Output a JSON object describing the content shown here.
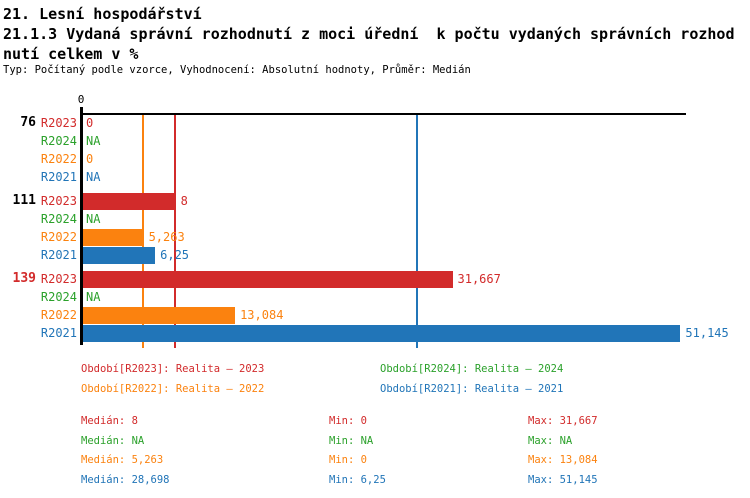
{
  "header": {
    "title_line1": "21. Lesní hospodářství",
    "title_line2": "21.1.3 Vydaná správní rozhodnutí z moci úřední  k počtu vydaných správních rozhod",
    "title_line3": "nutí celkem v %",
    "meta": "Typ: Počítaný podle vzorce, Vyhodnocení: Absolutní hodnoty, Průměr: Medián"
  },
  "colors": {
    "R2023": "#d22b2b",
    "R2024": "#2ba12b",
    "R2022": "#fb820f",
    "R2021": "#2175b8",
    "axis": "#000000"
  },
  "chart_data": {
    "type": "bar",
    "orientation": "horizontal",
    "unit": "%",
    "x_axis": {
      "origin_label": "0",
      "min": 0,
      "max": 51.2,
      "grid": "median-lines-only"
    },
    "series_order": [
      "R2023",
      "R2024",
      "R2022",
      "R2021"
    ],
    "groups": [
      {
        "label": "76",
        "label_color": "#000000",
        "values": {
          "R2023": "0",
          "R2024": "NA",
          "R2022": "0",
          "R2021": "NA"
        }
      },
      {
        "label": "111",
        "label_color": "#000000",
        "values": {
          "R2023": "8",
          "R2024": "NA",
          "R2022": "5,263",
          "R2021": "6,25"
        }
      },
      {
        "label": "139",
        "label_color": "#d22b2b",
        "values": {
          "R2023": "31,667",
          "R2024": "NA",
          "R2022": "13,084",
          "R2021": "51,145"
        }
      }
    ],
    "median_lines": {
      "R2022": 5.263,
      "R2023": 8,
      "R2021": 28.698
    }
  },
  "legend": {
    "items": [
      {
        "series": "R2023",
        "label": "Období[R2023]: Realita – 2023"
      },
      {
        "series": "R2024",
        "label": "Období[R2024]: Realita – 2024"
      },
      {
        "series": "R2022",
        "label": "Období[R2022]: Realita – 2022"
      },
      {
        "series": "R2021",
        "label": "Období[R2021]: Realita – 2021"
      }
    ]
  },
  "stats": {
    "labels": {
      "median": "Medián",
      "min": "Min",
      "max": "Max"
    },
    "rows": [
      {
        "series": "R2023",
        "median": "8",
        "min": "0",
        "max": "31,667"
      },
      {
        "series": "R2024",
        "median": "NA",
        "min": "NA",
        "max": "NA"
      },
      {
        "series": "R2022",
        "median": "5,263",
        "min": "0",
        "max": "13,084"
      },
      {
        "series": "R2021",
        "median": "28,698",
        "min": "6,25",
        "max": "51,145"
      }
    ]
  }
}
